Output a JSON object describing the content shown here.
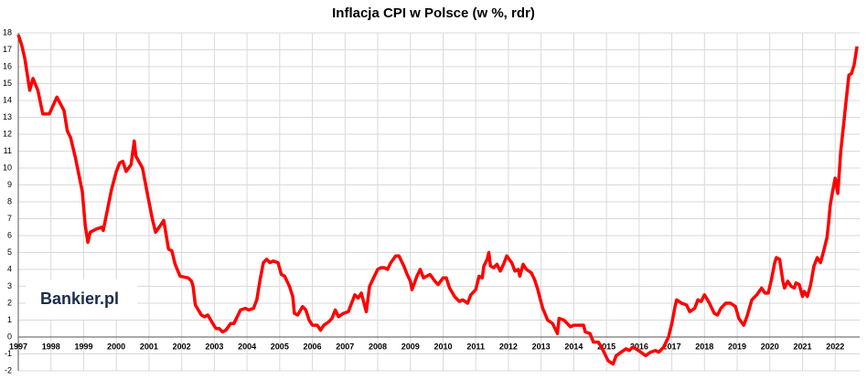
{
  "chart_data": {
    "type": "line",
    "title": "Inflacja CPI w Polsce (w %, rdr)",
    "logo": "Bankier.pl",
    "color": "#ff0000",
    "grid": true,
    "xlim": [
      1997,
      2022.75
    ],
    "ylim": [
      -2,
      18
    ],
    "xticks": [
      1997,
      1998,
      1999,
      2000,
      2001,
      2002,
      2003,
      2004,
      2005,
      2006,
      2007,
      2008,
      2009,
      2010,
      2011,
      2012,
      2013,
      2014,
      2015,
      2016,
      2017,
      2018,
      2019,
      2020,
      2021,
      2022
    ],
    "yticks": [
      -2,
      -1,
      0,
      1,
      2,
      3,
      4,
      5,
      6,
      7,
      8,
      9,
      10,
      11,
      12,
      13,
      14,
      15,
      16,
      17,
      18
    ],
    "x": [
      1997.0,
      1997.1,
      1997.2,
      1997.35,
      1997.45,
      1997.6,
      1997.75,
      1997.95,
      1998.18,
      1998.4,
      1998.5,
      1998.6,
      1998.75,
      1998.96,
      1999.05,
      1999.13,
      1999.2,
      1999.4,
      1999.55,
      1999.6,
      1999.85,
      2000.0,
      2000.1,
      2000.2,
      2000.3,
      2000.45,
      2000.55,
      2000.6,
      2000.8,
      2000.95,
      2001.1,
      2001.2,
      2001.35,
      2001.45,
      2001.6,
      2001.7,
      2001.8,
      2001.95,
      2002.2,
      2002.3,
      2002.35,
      2002.42,
      2002.6,
      2002.7,
      2002.8,
      2002.95,
      2003.05,
      2003.15,
      2003.25,
      2003.35,
      2003.5,
      2003.6,
      2003.8,
      2003.95,
      2004.05,
      2004.2,
      2004.3,
      2004.4,
      2004.5,
      2004.6,
      2004.7,
      2004.8,
      2004.95,
      2005.05,
      2005.15,
      2005.3,
      2005.4,
      2005.45,
      2005.55,
      2005.7,
      2005.8,
      2005.9,
      2006.0,
      2006.15,
      2006.25,
      2006.35,
      2006.5,
      2006.6,
      2006.7,
      2006.8,
      2006.95,
      2007.1,
      2007.2,
      2007.3,
      2007.4,
      2007.5,
      2007.65,
      2007.75,
      2007.9,
      2008.0,
      2008.1,
      2008.2,
      2008.3,
      2008.4,
      2008.55,
      2008.65,
      2008.8,
      2008.9,
      2009.0,
      2009.05,
      2009.2,
      2009.3,
      2009.4,
      2009.6,
      2009.75,
      2009.85,
      2010.0,
      2010.1,
      2010.2,
      2010.35,
      2010.5,
      2010.6,
      2010.75,
      2010.85,
      2011.0,
      2011.1,
      2011.2,
      2011.25,
      2011.35,
      2011.4,
      2011.45,
      2011.55,
      2011.65,
      2011.75,
      2011.85,
      2011.95,
      2012.1,
      2012.2,
      2012.3,
      2012.35,
      2012.45,
      2012.55,
      2012.7,
      2012.8,
      2012.9,
      2012.95,
      2013.05,
      2013.2,
      2013.35,
      2013.5,
      2013.55,
      2013.7,
      2013.9,
      2014.0,
      2014.15,
      2014.3,
      2014.35,
      2014.5,
      2014.6,
      2014.75,
      2014.85,
      2014.95,
      2015.05,
      2015.2,
      2015.3,
      2015.45,
      2015.6,
      2015.7,
      2015.8,
      2015.9,
      2016.05,
      2016.2,
      2016.35,
      2016.5,
      2016.6,
      2016.75,
      2016.9,
      2017.0,
      2017.1,
      2017.15,
      2017.3,
      2017.45,
      2017.55,
      2017.7,
      2017.8,
      2017.9,
      2018.0,
      2018.15,
      2018.3,
      2018.4,
      2018.5,
      2018.65,
      2018.8,
      2018.95,
      2019.05,
      2019.2,
      2019.3,
      2019.45,
      2019.6,
      2019.75,
      2019.85,
      2019.95,
      2020.05,
      2020.15,
      2020.2,
      2020.3,
      2020.4,
      2020.45,
      2020.55,
      2020.65,
      2020.75,
      2020.8,
      2020.9,
      2021.0,
      2021.05,
      2021.15,
      2021.25,
      2021.35,
      2021.45,
      2021.55,
      2021.65,
      2021.75,
      2021.8,
      2021.85,
      2021.92,
      2022.0,
      2022.08,
      2022.17,
      2022.25,
      2022.33,
      2022.42,
      2022.5,
      2022.58,
      2022.67
    ],
    "values": [
      17.9,
      17.3,
      16.5,
      14.6,
      15.3,
      14.6,
      13.2,
      13.2,
      14.2,
      13.4,
      12.2,
      11.8,
      10.6,
      8.6,
      6.6,
      5.6,
      6.2,
      6.4,
      6.5,
      6.3,
      8.7,
      9.8,
      10.3,
      10.4,
      9.8,
      10.2,
      11.6,
      10.7,
      10.0,
      8.5,
      7.0,
      6.2,
      6.6,
      6.9,
      5.2,
      5.1,
      4.3,
      3.6,
      3.5,
      3.3,
      3.0,
      1.9,
      1.3,
      1.2,
      1.3,
      0.8,
      0.5,
      0.5,
      0.3,
      0.4,
      0.8,
      0.8,
      1.6,
      1.7,
      1.6,
      1.7,
      2.2,
      3.4,
      4.4,
      4.6,
      4.4,
      4.5,
      4.4,
      3.7,
      3.6,
      3.0,
      2.4,
      1.4,
      1.3,
      1.8,
      1.6,
      1.0,
      0.7,
      0.7,
      0.4,
      0.7,
      0.9,
      1.1,
      1.6,
      1.2,
      1.4,
      1.5,
      2.0,
      2.5,
      2.3,
      2.6,
      1.5,
      3.0,
      3.6,
      4.0,
      4.1,
      4.1,
      4.0,
      4.4,
      4.8,
      4.8,
      4.2,
      3.7,
      3.3,
      2.8,
      3.6,
      4.0,
      3.5,
      3.7,
      3.3,
      3.1,
      3.5,
      3.5,
      2.9,
      2.4,
      2.1,
      2.2,
      2.0,
      2.5,
      2.8,
      3.6,
      3.5,
      4.2,
      4.6,
      5.0,
      4.2,
      4.1,
      4.3,
      3.9,
      4.3,
      4.8,
      4.4,
      3.9,
      4.0,
      3.6,
      4.3,
      4.0,
      3.8,
      3.4,
      2.8,
      2.4,
      1.7,
      1.0,
      0.8,
      0.2,
      1.1,
      1.0,
      0.6,
      0.7,
      0.7,
      0.7,
      0.3,
      0.2,
      -0.3,
      -0.3,
      -0.6,
      -1.0,
      -1.4,
      -1.6,
      -1.1,
      -0.9,
      -0.7,
      -0.8,
      -0.6,
      -0.7,
      -0.9,
      -1.1,
      -0.9,
      -0.8,
      -0.9,
      -0.6,
      0.0,
      0.8,
      1.8,
      2.2,
      2.0,
      1.9,
      1.5,
      1.7,
      2.2,
      2.1,
      2.5,
      2.0,
      1.4,
      1.3,
      1.7,
      2.0,
      2.0,
      1.8,
      1.1,
      0.7,
      1.2,
      2.2,
      2.5,
      2.9,
      2.6,
      2.6,
      3.4,
      4.4,
      4.7,
      4.6,
      3.3,
      2.9,
      3.3,
      3.0,
      2.9,
      3.2,
      3.1,
      2.4,
      2.7,
      2.4,
      3.1,
      4.2,
      4.7,
      4.4,
      5.1,
      5.9,
      6.8,
      7.8,
      8.6,
      9.4,
      8.5,
      11.0,
      12.4,
      13.9,
      15.5,
      15.6,
      16.1,
      17.2
    ]
  }
}
